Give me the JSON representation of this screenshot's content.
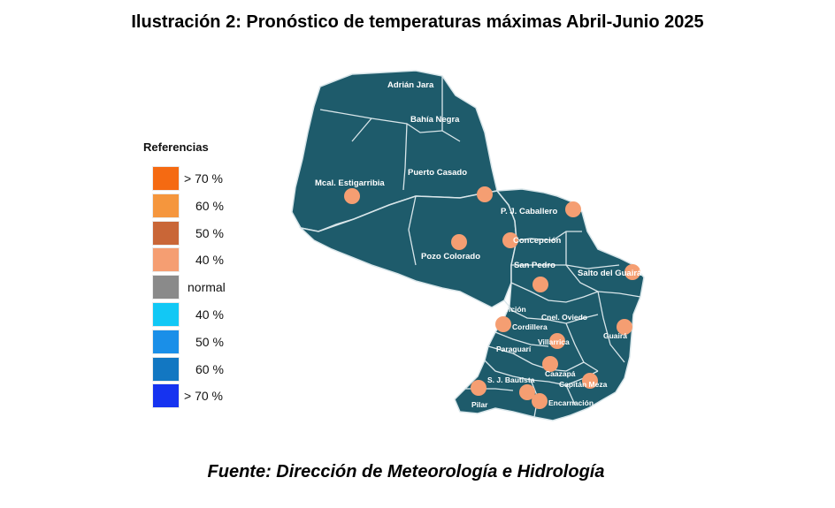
{
  "title": "Ilustración 2: Pronóstico de temperaturas máximas Abril-Junio 2025",
  "source": "Fuente: Dirección de Meteorología e Hidrología",
  "legend": {
    "title": "Referencias",
    "items": [
      {
        "label": "> 70 %",
        "color": "#f56a12"
      },
      {
        "label": "60 %",
        "color": "#f5963d"
      },
      {
        "label": "50 %",
        "color": "#c96637"
      },
      {
        "label": "40 %",
        "color": "#f59e72"
      },
      {
        "label": "normal",
        "color": "#8a8a8a"
      },
      {
        "label": "40  %",
        "color": "#12c8f5"
      },
      {
        "label": "50  %",
        "color": "#1a8fe8"
      },
      {
        "label": "60 %",
        "color": "#1277c2"
      },
      {
        "label": "> 70 %",
        "color": "#1633f0"
      }
    ]
  },
  "map": {
    "fill_color": "#1e5b6b",
    "border_color": "#d9e6ea",
    "marker_color": "#f59e72",
    "labels": {
      "adrian_jara": "Adrián Jara",
      "bahia_negra": "Bahía Negra",
      "puerto_casado": "Puerto Casado",
      "mcal_estigarribia": "Mcal. Estigarribia",
      "pj_caballero": "P. J. Caballero",
      "concepcion": "Concepción",
      "pozo_colorado": "Pozo Colorado",
      "san_pedro": "San Pedro",
      "salto_del_guaira": "Salto del Guairá",
      "asuncion": "Asunción",
      "cnel_oviedo": "Cnel. Oviedo",
      "cordillera": "Cordillera",
      "villarrica": "Villarrica",
      "guaira": "Guairá",
      "paraguari": "Paraguarí",
      "caazapa": "Caazapá",
      "sj_bautista": "S. J. Bautista",
      "capitan_meza": "Capitán Meza",
      "pilar": "Pilar",
      "encarnacion": "Encarnación"
    },
    "forecast_category": "40 %"
  }
}
